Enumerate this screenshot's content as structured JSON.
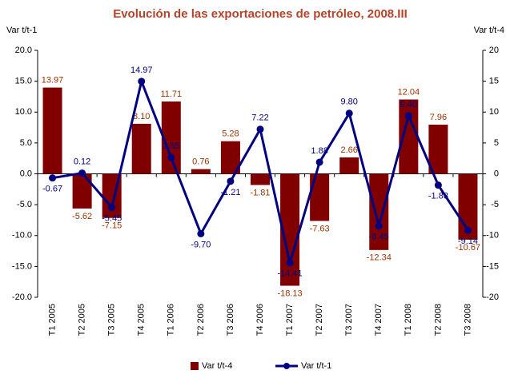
{
  "chart_data": {
    "type": "bar_line",
    "title": "Evolución de las exportaciones de petróleo, 2008.III",
    "y_label": "Var t/t-1",
    "y2_label": "Var t/t-4",
    "categories": [
      "T1 2005",
      "T2 2005",
      "T3 2005",
      "T4 2005",
      "T1 2006",
      "T2 2006",
      "T3 2006",
      "T4 2006",
      "T1 2007",
      "T2 2007",
      "T3 2007",
      "T4 2007",
      "T1 2008",
      "T2 2008",
      "T3 2008"
    ],
    "series": [
      {
        "name": "Var t/t-4",
        "type": "bar",
        "axis": "y2",
        "color": "#800000",
        "label_color": "#993300",
        "values": [
          13.97,
          -5.62,
          -7.15,
          8.1,
          11.71,
          0.76,
          5.28,
          -1.81,
          -18.13,
          -7.63,
          2.66,
          -12.34,
          12.04,
          7.96,
          -10.67
        ],
        "value_labels": [
          "13.97",
          "-5.62",
          "-7.15",
          "8.10",
          "11.71",
          "0.76",
          "5.28",
          "-1.81",
          "-18.13",
          "-7.63",
          "2.66",
          "-12.34",
          "12.04",
          "7.96",
          "-10.67"
        ]
      },
      {
        "name": "Var t/t-1",
        "type": "line",
        "axis": "y",
        "color": "#000080",
        "label_color": "#000080",
        "values": [
          -0.67,
          0.12,
          -5.45,
          14.97,
          2.65,
          -9.7,
          -1.21,
          7.22,
          -14.41,
          1.88,
          9.8,
          -8.45,
          9.4,
          -1.83,
          -9.14
        ],
        "value_labels": [
          "-0.67",
          "0.12",
          "-5.45",
          "14.97",
          "2.65",
          "-9.70",
          "-1.21",
          "7.22",
          "-14.41",
          "1.88",
          "9.80",
          "-8.45",
          "9.40",
          "-1.83",
          "-9.14"
        ]
      }
    ],
    "ylim": [
      -20,
      20
    ],
    "yticks": [
      {
        "value": -20,
        "label": "-20.0"
      },
      {
        "value": -15,
        "label": "-15.0"
      },
      {
        "value": -10,
        "label": "-10.0"
      },
      {
        "value": -5,
        "label": "-5.0"
      },
      {
        "value": 0,
        "label": "0.0"
      },
      {
        "value": 5,
        "label": "5.0"
      },
      {
        "value": 10,
        "label": "10.0"
      },
      {
        "value": 15,
        "label": "15.0"
      },
      {
        "value": 20,
        "label": "20.0"
      }
    ],
    "y2lim": [
      -20,
      20
    ],
    "y2ticks": [
      -20,
      -15,
      -10,
      -5,
      0,
      5,
      10,
      15,
      20
    ],
    "grid": false
  }
}
